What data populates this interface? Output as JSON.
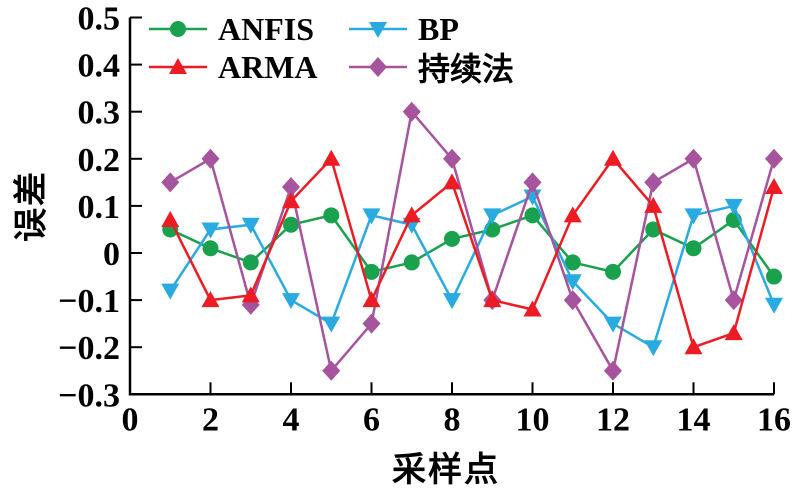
{
  "chart_data": {
    "type": "line",
    "title": "",
    "xlabel": "采样点",
    "ylabel": "误差",
    "xlim": [
      0,
      16
    ],
    "ylim": [
      -0.3,
      0.5
    ],
    "xticks": [
      0,
      2,
      4,
      6,
      8,
      10,
      12,
      14,
      16
    ],
    "yticks": [
      0.5,
      0.4,
      0.3,
      0.2,
      0.1,
      0,
      -0.1,
      -0.2,
      -0.3
    ],
    "ytick_labels": [
      "0.5",
      "0.4",
      "0.3",
      "0.2",
      "0.1",
      "0",
      "−0.1",
      "−0.2",
      "−0.3"
    ],
    "grid": false,
    "background_color": "#FFFFFF",
    "axis_color": "#000000",
    "legend_position": "top-left-inside",
    "legend_columns": 2,
    "x": [
      1,
      2,
      3,
      4,
      5,
      6,
      7,
      8,
      9,
      10,
      11,
      12,
      13,
      14,
      15,
      16
    ],
    "series": [
      {
        "name": "ANFIS",
        "color": "#1AA14E",
        "marker": "circle",
        "values": [
          0.05,
          0.01,
          -0.02,
          0.06,
          0.08,
          -0.04,
          -0.02,
          0.03,
          0.05,
          0.08,
          -0.02,
          -0.04,
          0.05,
          0.01,
          0.07,
          -0.05
        ]
      },
      {
        "name": "ARMA",
        "color": "#ED1C24",
        "marker": "triangle-up",
        "values": [
          0.07,
          -0.1,
          -0.09,
          0.11,
          0.2,
          -0.1,
          0.08,
          0.15,
          -0.1,
          -0.12,
          0.08,
          0.2,
          0.1,
          -0.2,
          -0.17,
          0.14
        ]
      },
      {
        "name": "BP",
        "color": "#29ABE2",
        "marker": "triangle-down",
        "values": [
          -0.08,
          0.05,
          0.06,
          -0.1,
          -0.15,
          0.08,
          0.06,
          -0.1,
          0.08,
          0.12,
          -0.06,
          -0.15,
          -0.2,
          0.08,
          0.1,
          -0.11
        ]
      },
      {
        "name": "持续法",
        "color": "#A6549D",
        "marker": "diamond",
        "values": [
          0.15,
          0.2,
          -0.11,
          0.14,
          -0.25,
          -0.15,
          0.3,
          0.2,
          -0.1,
          0.15,
          -0.1,
          -0.25,
          0.15,
          0.2,
          -0.1,
          0.2
        ]
      }
    ]
  }
}
